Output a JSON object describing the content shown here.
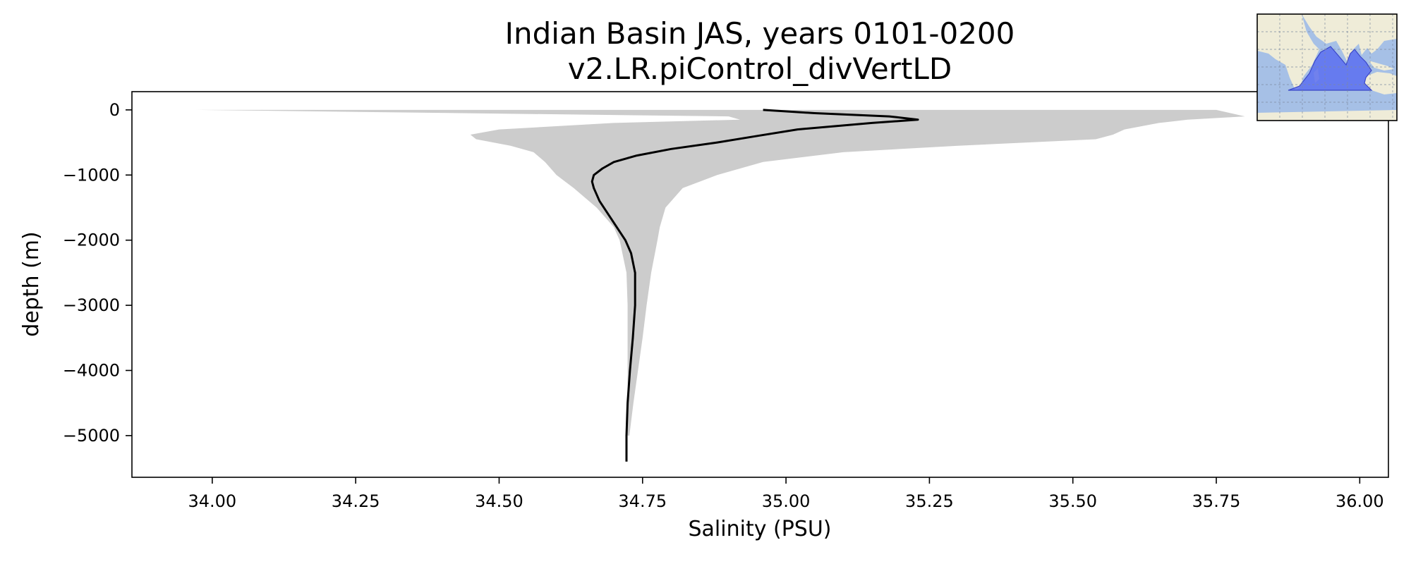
{
  "chart_data": {
    "type": "line",
    "title": "Indian Basin JAS, years 0101-0200",
    "subtitle": "v2.LR.piControl_divVertLD",
    "xlabel": "Salinity (PSU)",
    "ylabel": "depth (m)",
    "xlim": [
      33.86,
      36.05
    ],
    "ylim": [
      -5640,
      280
    ],
    "x_ticks": [
      34.0,
      34.25,
      34.5,
      34.75,
      35.0,
      35.25,
      35.5,
      35.75,
      36.0
    ],
    "x_tick_labels": [
      "34.00",
      "34.25",
      "34.50",
      "34.75",
      "35.00",
      "35.25",
      "35.50",
      "35.75",
      "36.00"
    ],
    "y_ticks": [
      0,
      -1000,
      -2000,
      -3000,
      -4000,
      -5000
    ],
    "y_tick_labels": [
      "0",
      "−1000",
      "−2000",
      "−3000",
      "−4000",
      "−5000"
    ],
    "grid": false,
    "colors": {
      "line": "#000000",
      "band": "#cccccc",
      "map_ocean": "#a6c0e6",
      "map_land": "#efecd8",
      "map_region": "#5b6ef0"
    },
    "series": [
      {
        "values": [
          {
            "depth": 0,
            "salinity": 34.96
          },
          {
            "depth": -50,
            "salinity": 35.05
          },
          {
            "depth": -100,
            "salinity": 35.18
          },
          {
            "depth": -150,
            "salinity": 35.23
          },
          {
            "depth": -200,
            "salinity": 35.15
          },
          {
            "depth": -300,
            "salinity": 35.02
          },
          {
            "depth": -400,
            "salinity": 34.95
          },
          {
            "depth": -500,
            "salinity": 34.88
          },
          {
            "depth": -600,
            "salinity": 34.8
          },
          {
            "depth": -700,
            "salinity": 34.74
          },
          {
            "depth": -800,
            "salinity": 34.7
          },
          {
            "depth": -900,
            "salinity": 34.68
          },
          {
            "depth": -1000,
            "salinity": 34.665
          },
          {
            "depth": -1100,
            "salinity": 34.662
          },
          {
            "depth": -1200,
            "salinity": 34.665
          },
          {
            "depth": -1400,
            "salinity": 34.675
          },
          {
            "depth": -1600,
            "salinity": 34.69
          },
          {
            "depth": -1800,
            "salinity": 34.705
          },
          {
            "depth": -2000,
            "salinity": 34.72
          },
          {
            "depth": -2200,
            "salinity": 34.73
          },
          {
            "depth": -2500,
            "salinity": 34.737
          },
          {
            "depth": -3000,
            "salinity": 34.737
          },
          {
            "depth": -3500,
            "salinity": 34.733
          },
          {
            "depth": -4000,
            "salinity": 34.728
          },
          {
            "depth": -4500,
            "salinity": 34.724
          },
          {
            "depth": -5000,
            "salinity": 34.722
          },
          {
            "depth": -5400,
            "salinity": 34.722
          }
        ]
      }
    ],
    "band": [
      {
        "depth": 0,
        "min": 33.97,
        "max": 35.75
      },
      {
        "depth": -100,
        "min": 34.9,
        "max": 35.8
      },
      {
        "depth": -150,
        "min": 34.92,
        "max": 35.7
      },
      {
        "depth": -200,
        "min": 34.7,
        "max": 35.65
      },
      {
        "depth": -300,
        "min": 34.5,
        "max": 35.59
      },
      {
        "depth": -380,
        "min": 34.45,
        "max": 35.57
      },
      {
        "depth": -450,
        "min": 34.46,
        "max": 35.54
      },
      {
        "depth": -550,
        "min": 34.52,
        "max": 35.3
      },
      {
        "depth": -650,
        "min": 34.56,
        "max": 35.1
      },
      {
        "depth": -800,
        "min": 34.58,
        "max": 34.96
      },
      {
        "depth": -1000,
        "min": 34.6,
        "max": 34.88
      },
      {
        "depth": -1200,
        "min": 34.63,
        "max": 34.82
      },
      {
        "depth": -1500,
        "min": 34.67,
        "max": 34.79
      },
      {
        "depth": -1800,
        "min": 34.7,
        "max": 34.78
      },
      {
        "depth": -2000,
        "min": 34.71,
        "max": 34.776
      },
      {
        "depth": -2500,
        "min": 34.722,
        "max": 34.765
      },
      {
        "depth": -3000,
        "min": 34.724,
        "max": 34.757
      },
      {
        "depth": -3500,
        "min": 34.724,
        "max": 34.75
      },
      {
        "depth": -4000,
        "min": 34.724,
        "max": 34.742
      },
      {
        "depth": -4500,
        "min": 34.724,
        "max": 34.734
      },
      {
        "depth": -5000,
        "min": 34.724,
        "max": 34.727
      }
    ]
  }
}
